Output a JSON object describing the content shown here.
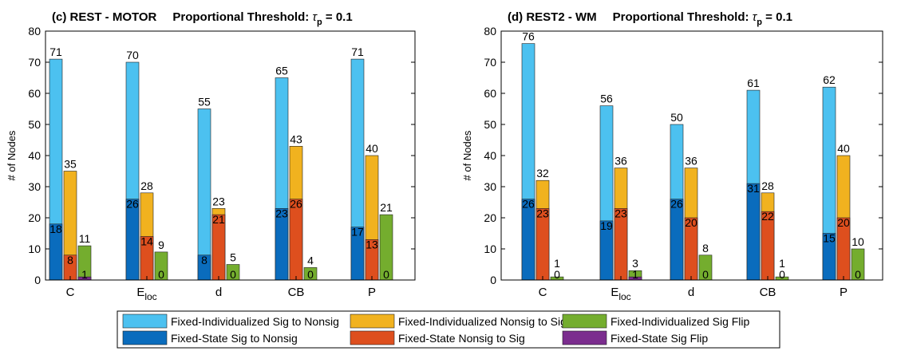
{
  "chart_data": {
    "legend": [
      {
        "name": "Fixed-Individualized Sig to Nonsig",
        "color": "#4cc1f0"
      },
      {
        "name": "Fixed-Individualized Nonsig to Sig",
        "color": "#f1b21f"
      },
      {
        "name": "Fixed-Individualized Sig Flip",
        "color": "#74ad2e"
      },
      {
        "name": "Fixed-State Sig to Nonsig",
        "color": "#0a6cbd"
      },
      {
        "name": "Fixed-State Nonsig to Sig",
        "color": "#de4f1e"
      },
      {
        "name": "Fixed-State Sig Flip",
        "color": "#7b2d8e"
      }
    ],
    "panels": [
      {
        "type": "bar",
        "title_prefix": "(c)  REST - MOTOR",
        "title_threshold": "Proportional Threshold: ",
        "tau": "τ",
        "tau_sub": "p",
        "tau_value": " = 0.1",
        "ylabel": "# of Nodes",
        "ylim": [
          0,
          80
        ],
        "yticks": [
          0,
          10,
          20,
          30,
          40,
          50,
          60,
          70,
          80
        ],
        "categories": [
          "C",
          "E",
          "d",
          "CB",
          "P"
        ],
        "category_subscripts": [
          "",
          "loc",
          "",
          "",
          ""
        ],
        "series": [
          {
            "name": "Fixed-Individualized Sig to Nonsig",
            "values": [
              71,
              70,
              55,
              65,
              71
            ]
          },
          {
            "name": "Fixed-Individualized Nonsig to Sig",
            "values": [
              35,
              28,
              23,
              43,
              40
            ]
          },
          {
            "name": "Fixed-Individualized Sig Flip",
            "values": [
              11,
              9,
              5,
              4,
              21
            ]
          },
          {
            "name": "Fixed-State Sig to Nonsig",
            "values": [
              18,
              26,
              8,
              23,
              17
            ]
          },
          {
            "name": "Fixed-State Nonsig to Sig",
            "values": [
              8,
              14,
              21,
              26,
              13
            ]
          },
          {
            "name": "Fixed-State Sig Flip",
            "values": [
              1,
              0,
              0,
              0,
              0
            ]
          }
        ]
      },
      {
        "type": "bar",
        "title_prefix": "(d)  REST2 - WM",
        "title_threshold": "Proportional Threshold: ",
        "tau": "τ",
        "tau_sub": "p",
        "tau_value": " = 0.1",
        "ylabel": "# of Nodes",
        "ylim": [
          0,
          80
        ],
        "yticks": [
          0,
          10,
          20,
          30,
          40,
          50,
          60,
          70,
          80
        ],
        "categories": [
          "C",
          "E",
          "d",
          "CB",
          "P"
        ],
        "category_subscripts": [
          "",
          "loc",
          "",
          "",
          ""
        ],
        "series": [
          {
            "name": "Fixed-Individualized Sig to Nonsig",
            "values": [
              76,
              56,
              50,
              61,
              62
            ]
          },
          {
            "name": "Fixed-Individualized Nonsig to Sig",
            "values": [
              32,
              36,
              36,
              28,
              40
            ]
          },
          {
            "name": "Fixed-Individualized Sig Flip",
            "values": [
              1,
              3,
              8,
              1,
              10
            ]
          },
          {
            "name": "Fixed-State Sig to Nonsig",
            "values": [
              26,
              19,
              26,
              31,
              15
            ]
          },
          {
            "name": "Fixed-State Nonsig to Sig",
            "values": [
              23,
              23,
              20,
              22,
              20
            ]
          },
          {
            "name": "Fixed-State Sig Flip",
            "values": [
              0,
              1,
              0,
              0,
              0
            ]
          }
        ]
      }
    ]
  }
}
